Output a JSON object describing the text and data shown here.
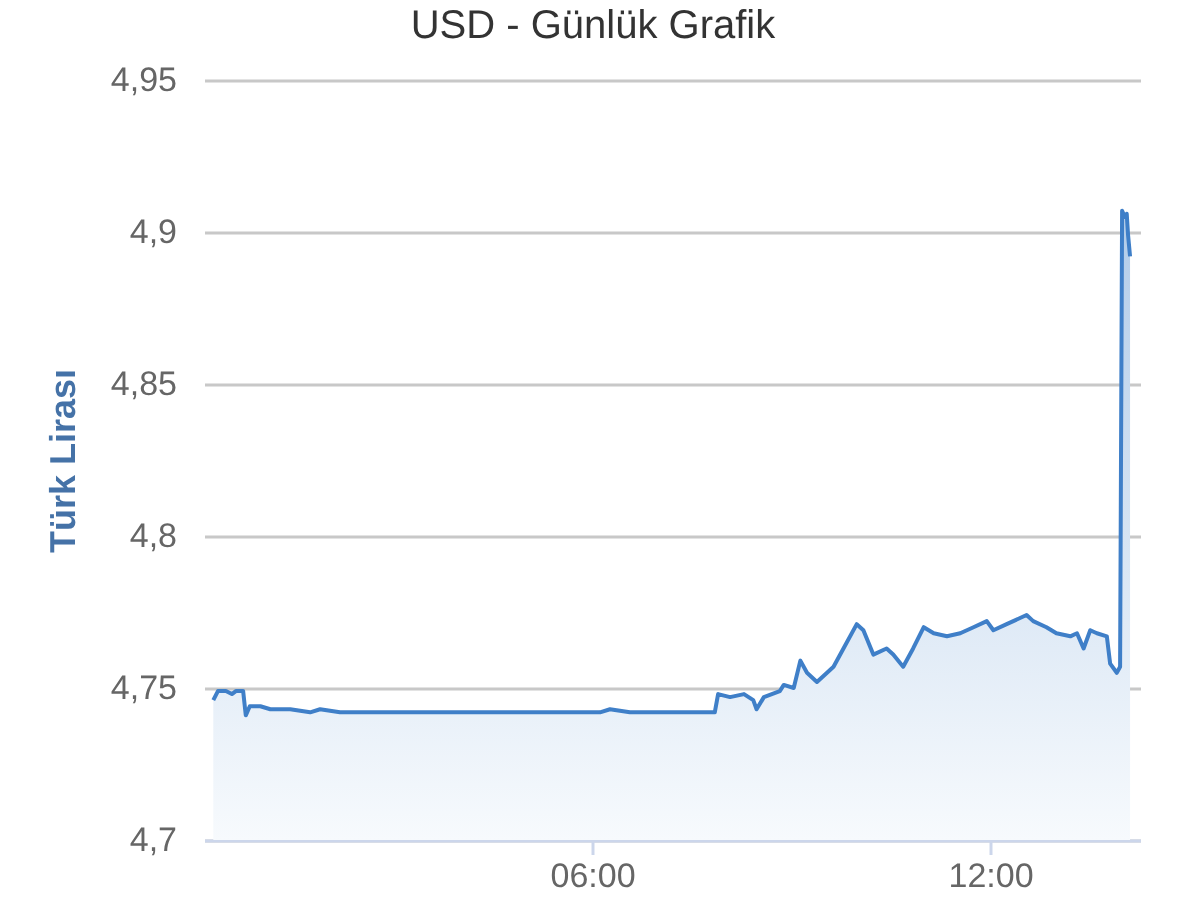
{
  "chart_data": {
    "type": "area",
    "title": "USD - Günlük Grafik",
    "ylabel": "Türk Lirası",
    "x": [
      0.29,
      0.36,
      0.48,
      0.57,
      0.63,
      0.74,
      0.78,
      0.84,
      1.0,
      1.15,
      1.45,
      1.75,
      1.9,
      2.2,
      2.65,
      3.1,
      3.56,
      4.01,
      4.46,
      4.91,
      5.37,
      5.52,
      5.82,
      6.12,
      6.27,
      6.57,
      6.87,
      7.33,
      7.63,
      7.85,
      7.9,
      8.08,
      8.29,
      8.43,
      8.48,
      8.59,
      8.83,
      8.89,
      9.04,
      9.14,
      9.24,
      9.39,
      9.64,
      9.79,
      9.99,
      10.09,
      10.24,
      10.44,
      10.54,
      10.69,
      10.84,
      11.0,
      11.15,
      11.35,
      11.55,
      11.75,
      11.95,
      12.05,
      12.25,
      12.55,
      12.65,
      12.85,
      13.0,
      13.21,
      13.31,
      13.41,
      13.51,
      13.61,
      13.76,
      13.81,
      13.91,
      13.96,
      13.99,
      14.03,
      14.06,
      14.08,
      14.11
    ],
    "series": [
      {
        "color": "#3f7fc8",
        "values": [
          4.746,
          4.749,
          4.749,
          4.748,
          4.749,
          4.749,
          4.741,
          4.744,
          4.744,
          4.743,
          4.743,
          4.742,
          4.743,
          4.742,
          4.742,
          4.742,
          4.742,
          4.742,
          4.742,
          4.742,
          4.742,
          4.742,
          4.742,
          4.742,
          4.743,
          4.742,
          4.742,
          4.742,
          4.742,
          4.742,
          4.748,
          4.747,
          4.748,
          4.746,
          4.743,
          4.747,
          4.749,
          4.751,
          4.75,
          4.759,
          4.755,
          4.752,
          4.757,
          4.763,
          4.771,
          4.769,
          4.761,
          4.763,
          4.761,
          4.757,
          4.763,
          4.77,
          4.768,
          4.767,
          4.768,
          4.77,
          4.772,
          4.769,
          4.771,
          4.774,
          4.772,
          4.77,
          4.768,
          4.767,
          4.768,
          4.763,
          4.769,
          4.768,
          4.767,
          4.758,
          4.755,
          4.757,
          4.907,
          4.905,
          4.906,
          4.899,
          4.892
        ]
      }
    ],
    "xlim": [
      0.15,
      14.26
    ],
    "xticks": [
      {
        "value": 6,
        "label": "06:00"
      },
      {
        "value": 12,
        "label": "12:00"
      }
    ],
    "ylim": [
      4.7,
      4.95
    ],
    "yticks": [
      {
        "value": 4.7,
        "label": "4,7"
      },
      {
        "value": 4.75,
        "label": "4,75"
      },
      {
        "value": 4.8,
        "label": "4,8"
      },
      {
        "value": 4.85,
        "label": "4,85"
      },
      {
        "value": 4.9,
        "label": "4,9"
      },
      {
        "value": 4.95,
        "label": "4,95"
      }
    ],
    "grid": "y"
  }
}
